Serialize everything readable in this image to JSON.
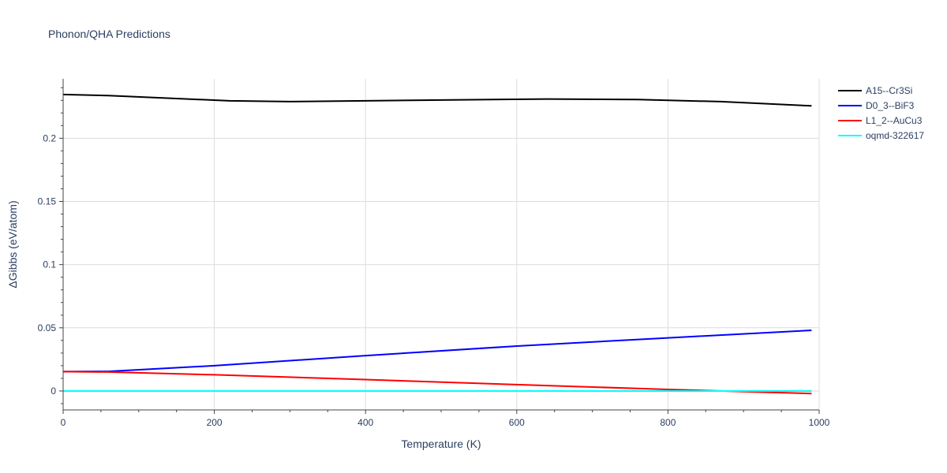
{
  "chart_data": {
    "type": "line",
    "title": "Phonon/QHA Predictions",
    "xlabel": "Temperature (K)",
    "ylabel": "ΔGibbs (eV/atom)",
    "xlim": [
      0,
      1000
    ],
    "ylim": [
      -0.015,
      0.247
    ],
    "xticks": [
      0,
      200,
      400,
      600,
      800,
      1000
    ],
    "yticks": [
      0,
      0.05,
      0.1,
      0.15,
      0.2
    ],
    "ytick_labels": [
      "0",
      "0.05",
      "0.1",
      "0.15",
      "0.2"
    ],
    "grid": true,
    "legend_position": "top-right",
    "series": [
      {
        "name": "A15--Cr3Si",
        "color": "#000000",
        "x": [
          0,
          60,
          120,
          220,
          300,
          400,
          500,
          640,
          760,
          870,
          990
        ],
        "y": [
          0.2346,
          0.2338,
          0.2322,
          0.2296,
          0.229,
          0.2296,
          0.2302,
          0.231,
          0.2306,
          0.229,
          0.2256
        ]
      },
      {
        "name": "D0_3--BiF3",
        "color": "#0000ff",
        "x": [
          0,
          60,
          200,
          400,
          600,
          800,
          990
        ],
        "y": [
          0.0153,
          0.0155,
          0.02,
          0.028,
          0.0355,
          0.042,
          0.048
        ]
      },
      {
        "name": "L1_2--AuCu3",
        "color": "#ff0000",
        "x": [
          0,
          60,
          200,
          400,
          600,
          800,
          900,
          990
        ],
        "y": [
          0.0153,
          0.015,
          0.0128,
          0.009,
          0.005,
          0.0012,
          -0.0005,
          -0.002
        ]
      },
      {
        "name": "oqmd-322617",
        "color": "#00ffff",
        "x": [
          0,
          990
        ],
        "y": [
          0,
          0
        ]
      }
    ]
  }
}
